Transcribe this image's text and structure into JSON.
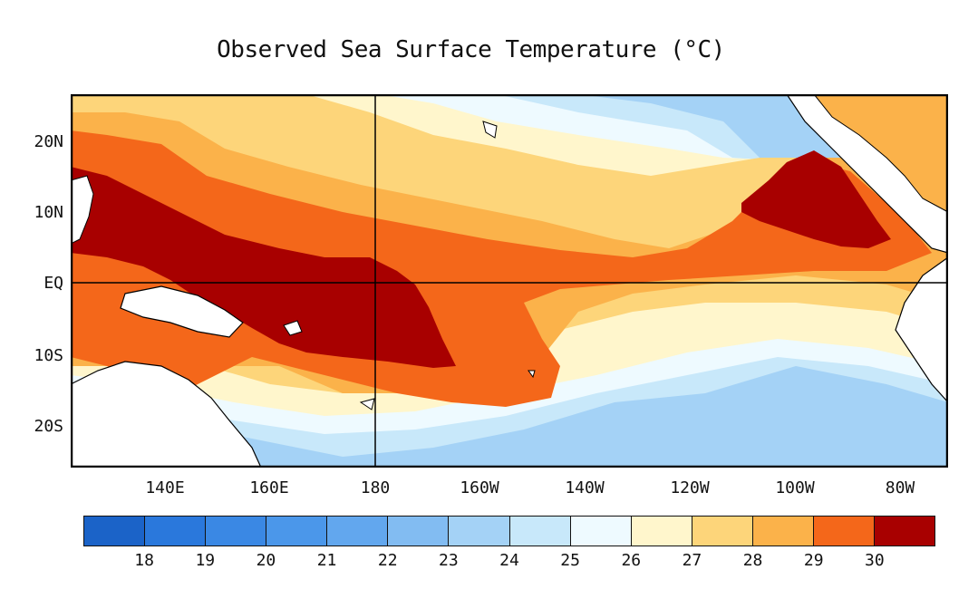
{
  "title": "Observed Sea Surface Temperature (°C)",
  "lat_labels": [
    "20N",
    "10N",
    "EQ",
    "10S",
    "20S"
  ],
  "lon_labels": [
    "140E",
    "160E",
    "180",
    "160W",
    "140W",
    "120W",
    "100W",
    "80W"
  ],
  "colorbar": {
    "labels": [
      "18",
      "19",
      "20",
      "21",
      "22",
      "23",
      "24",
      "25",
      "26",
      "27",
      "28",
      "29",
      "30"
    ],
    "colors": [
      "#1b63c8",
      "#2a78dc",
      "#3a88e4",
      "#4b97ea",
      "#62a7ee",
      "#82bcf2",
      "#a4d2f6",
      "#c8e8fa",
      "#eefaff",
      "#fff6cc",
      "#fdd57a",
      "#fbb24a",
      "#f4671a",
      "#a80000"
    ]
  },
  "map": {
    "region": "Tropical Pacific",
    "lon_range": [
      "130E",
      "75W"
    ],
    "lat_range": [
      "27S",
      "27N"
    ],
    "reference_lines": [
      "EQ",
      "180"
    ]
  }
}
